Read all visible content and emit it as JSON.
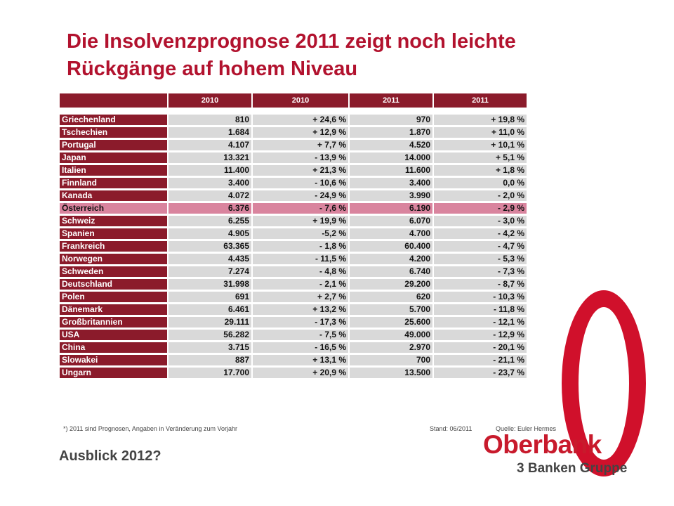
{
  "title": "Die Insolvenzprognose 2011 zeigt noch leichte Rückgänge auf hohem Niveau",
  "table": {
    "headers": [
      "",
      "2010",
      "2010",
      "2011",
      "2011"
    ],
    "rows": [
      {
        "country": "Griechenland",
        "v1": "810",
        "v2": "+ 24,6 %",
        "v3": "970",
        "v4": "+ 19,8 %"
      },
      {
        "country": "Tschechien",
        "v1": "1.684",
        "v2": "+ 12,9 %",
        "v3": "1.870",
        "v4": "+ 11,0 %"
      },
      {
        "country": "Portugal",
        "v1": "4.107",
        "v2": "+ 7,7 %",
        "v3": "4.520",
        "v4": "+ 10,1 %"
      },
      {
        "country": "Japan",
        "v1": "13.321",
        "v2": "- 13,9 %",
        "v3": "14.000",
        "v4": "+ 5,1 %"
      },
      {
        "country": "Italien",
        "v1": "11.400",
        "v2": "+ 21,3 %",
        "v3": "11.600",
        "v4": "+ 1,8 %"
      },
      {
        "country": "Finnland",
        "v1": "3.400",
        "v2": "- 10,6 %",
        "v3": "3.400",
        "v4": "0,0 %"
      },
      {
        "country": "Kanada",
        "v1": "4.072",
        "v2": "- 24,9 %",
        "v3": "3.990",
        "v4": "- 2,0 %"
      },
      {
        "country": "Österreich",
        "v1": "6.376",
        "v2": "- 7,6 %",
        "v3": "6.190",
        "v4": "- 2,9 %",
        "highlight": true
      },
      {
        "country": "Schweiz",
        "v1": "6.255",
        "v2": "+ 19,9 %",
        "v3": "6.070",
        "v4": "- 3,0 %"
      },
      {
        "country": "Spanien",
        "v1": "4.905",
        "v2": "-5,2 %",
        "v3": "4.700",
        "v4": "- 4,2 %"
      },
      {
        "country": "Frankreich",
        "v1": "63.365",
        "v2": "- 1,8 %",
        "v3": "60.400",
        "v4": "- 4,7 %"
      },
      {
        "country": "Norwegen",
        "v1": "4.435",
        "v2": "- 11,5 %",
        "v3": "4.200",
        "v4": "- 5,3 %"
      },
      {
        "country": "Schweden",
        "v1": "7.274",
        "v2": "- 4,8 %",
        "v3": "6.740",
        "v4": "- 7,3 %"
      },
      {
        "country": "Deutschland",
        "v1": "31.998",
        "v2": "- 2,1 %",
        "v3": "29.200",
        "v4": "- 8,7 %"
      },
      {
        "country": "Polen",
        "v1": "691",
        "v2": "+ 2,7 %",
        "v3": "620",
        "v4": "- 10,3 %"
      },
      {
        "country": "Dänemark",
        "v1": "6.461",
        "v2": "+ 13,2 %",
        "v3": "5.700",
        "v4": "- 11,8 %"
      },
      {
        "country": "Großbritannien",
        "v1": "29.111",
        "v2": "- 17,3 %",
        "v3": "25.600",
        "v4": "- 12,1 %"
      },
      {
        "country": "USA",
        "v1": "56.282",
        "v2": "- 7,5 %",
        "v3": "49.000",
        "v4": "- 12,9 %"
      },
      {
        "country": "China",
        "v1": "3.715",
        "v2": "- 16,5 %",
        "v3": "2.970",
        "v4": "- 20,1 %"
      },
      {
        "country": "Slowakei",
        "v1": "887",
        "v2": "+ 13,1 %",
        "v3": "700",
        "v4": "- 21,1 %"
      },
      {
        "country": "Ungarn",
        "v1": "17.700",
        "v2": "+ 20,9 %",
        "v3": "13.500",
        "v4": "- 23,7 %"
      }
    ]
  },
  "footnote": "*) 2011 sind Prognosen, Angaben in Veränderung zum Vorjahr",
  "stand": "Stand: 06/2011",
  "source": "Quelle: Euler Hermes",
  "outlook": "Ausblick 2012?",
  "logo": {
    "name": "Oberbank",
    "tagline": "3 Banken Gruppe"
  },
  "colors": {
    "title": "#b2122e",
    "table_dark": "#8b1b2b",
    "highlight": "#d9849e",
    "cell": "#d9d9d9",
    "ring": "#d0102b"
  }
}
